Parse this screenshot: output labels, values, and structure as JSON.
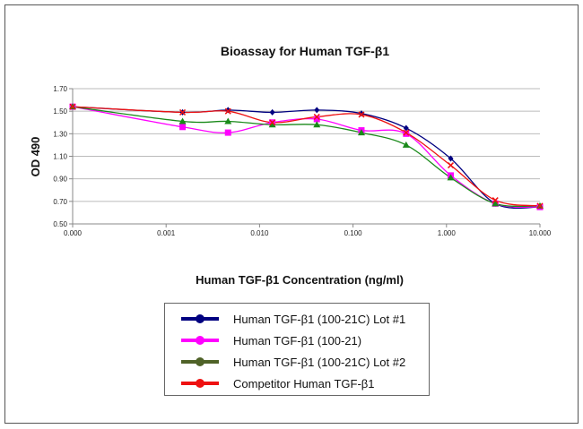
{
  "chart_data": {
    "type": "line",
    "title": "Bioassay for Human TGF-β1",
    "xlabel": "Human TGF-β1 Concentration (ng/ml)",
    "ylabel": "OD 490",
    "x_scale": "log",
    "xlim": [
      0.0001,
      10
    ],
    "ylim": [
      0.5,
      1.7
    ],
    "x_ticks": [
      0.0001,
      0.001,
      0.01,
      0.1,
      1,
      10
    ],
    "x_tick_labels": [
      "0.000",
      "0.001",
      "0.010",
      "0.100",
      "1.000",
      "10.000"
    ],
    "y_ticks": [
      0.5,
      0.7,
      0.9,
      1.1,
      1.3,
      1.5,
      1.7
    ],
    "y_tick_labels": [
      "0.50",
      "0.70",
      "0.90",
      "1.10",
      "1.30",
      "1.50",
      "1.70"
    ],
    "grid": "horizontal",
    "legend_position": "bottom",
    "x": [
      0.0001,
      0.0015,
      0.0046,
      0.0137,
      0.041,
      0.123,
      0.37,
      1.11,
      3.33,
      10
    ],
    "series": [
      {
        "name": "Human TGF-β1 (100-21C) Lot #1",
        "color": "#000080",
        "legend_color": "#000080",
        "marker": "diamond",
        "values": [
          1.54,
          1.49,
          1.51,
          1.49,
          1.51,
          1.48,
          1.35,
          1.08,
          0.68,
          0.65
        ]
      },
      {
        "name": "Human TGF-β1 (100-21)",
        "color": "#ff00ff",
        "legend_color": "#ff00ff",
        "marker": "square",
        "values": [
          1.54,
          1.36,
          1.31,
          1.4,
          1.43,
          1.33,
          1.3,
          0.93,
          0.68,
          0.65
        ]
      },
      {
        "name": "Human TGF-β1 (100-21C) Lot #2",
        "color": "#1a8a1a",
        "legend_color": "#4f6228",
        "marker": "triangle",
        "values": [
          1.54,
          1.41,
          1.41,
          1.38,
          1.38,
          1.31,
          1.2,
          0.91,
          0.68,
          0.66
        ]
      },
      {
        "name": "Competitor Human TGF-β1",
        "color": "#ee1111",
        "legend_color": "#ee1111",
        "marker": "x",
        "values": [
          1.54,
          1.49,
          1.5,
          1.4,
          1.45,
          1.47,
          1.31,
          1.02,
          0.71,
          0.66
        ]
      }
    ]
  }
}
